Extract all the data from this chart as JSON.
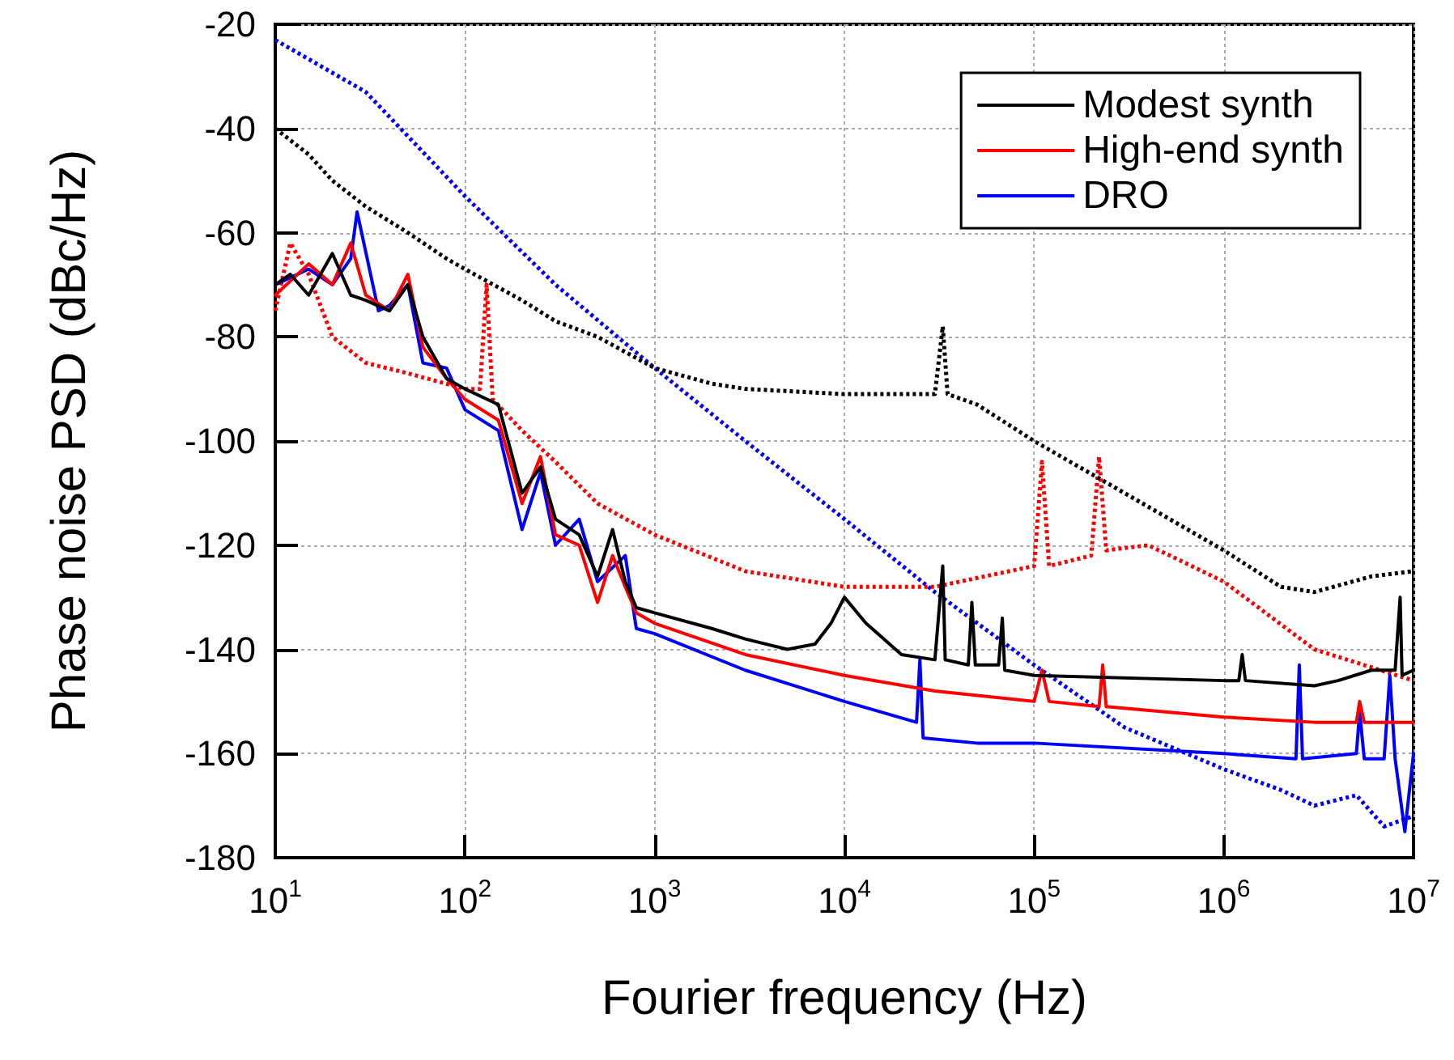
{
  "chart_data": {
    "type": "line",
    "xlabel": "Fourier frequency (Hz)",
    "ylabel": "Phase noise PSD (dBc/Hz)",
    "log": "x",
    "grid": true,
    "legend": "top right",
    "marker": "none",
    "xlim": [
      10,
      10000000
    ],
    "xticks": [
      {
        "value": 10,
        "label": "10$^{1}$"
      },
      {
        "value": 100,
        "label": "10$^{2}$"
      },
      {
        "value": 1000,
        "label": "10$^{3}$"
      },
      {
        "value": 10000,
        "label": "10$^{4}$"
      },
      {
        "value": 100000,
        "label": "10$^{5}$"
      },
      {
        "value": 1000000,
        "label": "10$^{6}$"
      },
      {
        "value": 10000000,
        "label": "10$^{7}$"
      }
    ],
    "ylim": [
      -180,
      -20
    ],
    "yticks": [
      -180,
      -160,
      -140,
      -120,
      -100,
      -80,
      -60,
      -40,
      -20
    ],
    "series": [
      {
        "name": "Modest synth",
        "color": "#000000",
        "line_style": "solid",
        "x": [
          10,
          12,
          15,
          20,
          25,
          30,
          40,
          50,
          60,
          80,
          100,
          150,
          200,
          250,
          300,
          400,
          500,
          600,
          700,
          800,
          1000,
          2000,
          3000,
          5000,
          7000,
          8500,
          10000,
          13000,
          20000,
          30000,
          33000,
          34000,
          45000,
          47000,
          49000,
          65000,
          68000,
          70000,
          100000,
          1000000,
          1200000,
          1250000,
          1300000,
          3000000,
          4000000,
          6000000,
          8000000,
          8500000,
          8700000,
          10000000
        ],
        "values": [
          -70,
          -68,
          -72,
          -64,
          -72,
          -73,
          -75,
          -70,
          -80,
          -88,
          -90,
          -93,
          -110,
          -105,
          -115,
          -118,
          -126,
          -117,
          -127,
          -132,
          -133,
          -136,
          -138,
          -140,
          -139,
          -135,
          -130,
          -135,
          -141,
          -142,
          -124,
          -142,
          -143,
          -131,
          -143,
          -143,
          -134,
          -144,
          -145,
          -146,
          -146,
          -141,
          -146,
          -147,
          -146,
          -144,
          -144,
          -130,
          -145,
          -144
        ]
      },
      {
        "name": "High-end synth",
        "color": "#ff0000",
        "line_style": "solid",
        "x": [
          10,
          15,
          20,
          25,
          30,
          40,
          50,
          60,
          80,
          100,
          150,
          200,
          250,
          300,
          400,
          500,
          600,
          700,
          800,
          1000,
          3000,
          10000,
          30000,
          100000,
          110000,
          120000,
          220000,
          230000,
          240000,
          1000000,
          3000000,
          5000000,
          5200000,
          5500000,
          10000000
        ],
        "values": [
          -72,
          -66,
          -70,
          -62,
          -72,
          -75,
          -68,
          -82,
          -88,
          -92,
          -96,
          -112,
          -103,
          -118,
          -120,
          -131,
          -122,
          -128,
          -133,
          -135,
          -141,
          -145,
          -148,
          -150,
          -144,
          -150,
          -151,
          -143,
          -151,
          -153,
          -154,
          -154,
          -150,
          -154,
          -154
        ]
      },
      {
        "name": "DRO",
        "color": "#0000ff",
        "line_style": "solid",
        "x": [
          10,
          15,
          20,
          25,
          27,
          35,
          40,
          50,
          60,
          80,
          100,
          150,
          200,
          250,
          300,
          400,
          500,
          700,
          800,
          1000,
          3000,
          10000,
          24000,
          25000,
          26000,
          50000,
          100000,
          1000000,
          2400000,
          2500000,
          2600000,
          5000000,
          5200000,
          5500000,
          7000000,
          7500000,
          8000000,
          9000000,
          10000000
        ],
        "values": [
          -70,
          -67,
          -70,
          -65,
          -56,
          -75,
          -74,
          -70,
          -85,
          -86,
          -94,
          -98,
          -117,
          -106,
          -120,
          -115,
          -127,
          -122,
          -136,
          -137,
          -144,
          -150,
          -154,
          -142,
          -157,
          -158,
          -158,
          -160,
          -161,
          -143,
          -161,
          -160,
          -152,
          -161,
          -161,
          -145,
          -161,
          -175,
          -160
        ]
      },
      {
        "color": "#000000",
        "line_style": "dotted",
        "x": [
          10,
          15,
          20,
          30,
          50,
          80,
          100,
          200,
          300,
          500,
          1000,
          2000,
          3000,
          10000,
          30000,
          33000,
          35000,
          50000,
          100000,
          300000,
          1000000,
          2000000,
          3000000,
          6000000,
          10000000
        ],
        "values": [
          -40,
          -45,
          -50,
          -55,
          -60,
          -65,
          -67,
          -73,
          -77,
          -80,
          -86,
          -89,
          -90,
          -91,
          -91,
          -78,
          -91,
          -93,
          -100,
          -110,
          -121,
          -128,
          -129,
          -126,
          -125
        ]
      },
      {
        "color": "#ff0000",
        "line_style": "dotted",
        "x": [
          10,
          12,
          15,
          20,
          30,
          50,
          100,
          120,
          130,
          140,
          200,
          300,
          500,
          1000,
          3000,
          10000,
          30000,
          100000,
          110000,
          120000,
          200000,
          220000,
          240000,
          400000,
          1000000,
          3000000,
          10000000
        ],
        "values": [
          -75,
          -62,
          -68,
          -80,
          -85,
          -87,
          -90,
          -90,
          -70,
          -92,
          -98,
          -104,
          -112,
          -118,
          -125,
          -128,
          -128,
          -124,
          -104,
          -124,
          -122,
          -103,
          -121,
          -120,
          -127,
          -140,
          -146
        ]
      },
      {
        "color": "#0000ff",
        "line_style": "dotted",
        "x": [
          10,
          30,
          100,
          300,
          1000,
          3000,
          10000,
          30000,
          100000,
          300000,
          1000000,
          2000000,
          3000000,
          5000000,
          7000000,
          10000000
        ],
        "values": [
          -23,
          -33,
          -53,
          -70,
          -86,
          -100,
          -115,
          -129,
          -143,
          -155,
          -163,
          -167,
          -170,
          -168,
          -174,
          -172
        ]
      }
    ]
  }
}
